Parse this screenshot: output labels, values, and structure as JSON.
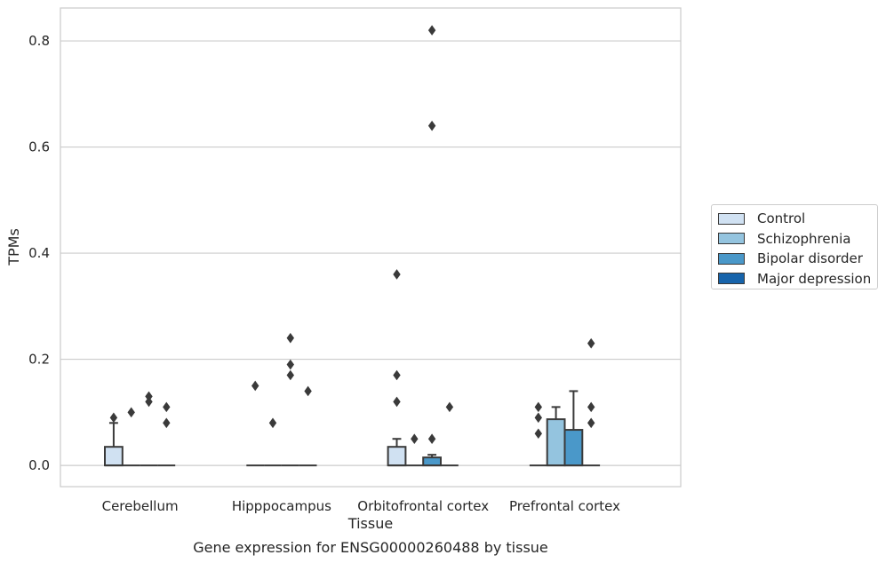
{
  "chart_data": {
    "type": "box",
    "title": "Gene expression for ENSG00000260488 by tissue",
    "xlabel": "Tissue",
    "ylabel": "TPMs",
    "ylim": [
      -0.04,
      0.862
    ],
    "yticks": [
      "0.0",
      "0.2",
      "0.4",
      "0.6",
      "0.8"
    ],
    "grid": true,
    "legend_position": "right",
    "categories": [
      "Cerebellum",
      "Hipppocampus",
      "Orbitofrontal cortex",
      "Prefrontal cortex"
    ],
    "series": [
      {
        "name": "Control",
        "color": "#d0e1f2",
        "boxes": [
          {
            "q1": 0.0,
            "median": 0.0,
            "q3": 0.035,
            "whisker_low": 0.0,
            "whisker_high": 0.08,
            "outliers": [
              0.09
            ]
          },
          {
            "q1": 0.0,
            "median": 0.0,
            "q3": 0.0,
            "whisker_low": 0.0,
            "whisker_high": 0.0,
            "outliers": [
              0.15
            ]
          },
          {
            "q1": 0.0,
            "median": 0.0,
            "q3": 0.035,
            "whisker_low": 0.0,
            "whisker_high": 0.05,
            "outliers": [
              0.36,
              0.17,
              0.12
            ]
          },
          {
            "q1": 0.0,
            "median": 0.0,
            "q3": 0.0,
            "whisker_low": 0.0,
            "whisker_high": 0.0,
            "outliers": [
              0.11,
              0.09,
              0.06
            ]
          }
        ]
      },
      {
        "name": "Schizophrenia",
        "color": "#94c4df",
        "boxes": [
          {
            "q1": 0.0,
            "median": 0.0,
            "q3": 0.0,
            "whisker_low": 0.0,
            "whisker_high": 0.0,
            "outliers": [
              0.1
            ]
          },
          {
            "q1": 0.0,
            "median": 0.0,
            "q3": 0.0,
            "whisker_low": 0.0,
            "whisker_high": 0.0,
            "outliers": [
              0.08
            ]
          },
          {
            "q1": 0.0,
            "median": 0.0,
            "q3": 0.0,
            "whisker_low": 0.0,
            "whisker_high": 0.0,
            "outliers": [
              0.05
            ]
          },
          {
            "q1": 0.0,
            "median": 0.0,
            "q3": 0.087,
            "whisker_low": 0.0,
            "whisker_high": 0.11,
            "outliers": []
          }
        ]
      },
      {
        "name": "Bipolar disorder",
        "color": "#4a98c9",
        "boxes": [
          {
            "q1": 0.0,
            "median": 0.0,
            "q3": 0.0,
            "whisker_low": 0.0,
            "whisker_high": 0.0,
            "outliers": [
              0.13,
              0.12
            ]
          },
          {
            "q1": 0.0,
            "median": 0.0,
            "q3": 0.0,
            "whisker_low": 0.0,
            "whisker_high": 0.0,
            "outliers": [
              0.24,
              0.19,
              0.17
            ]
          },
          {
            "q1": 0.0,
            "median": 0.0,
            "q3": 0.015,
            "whisker_low": 0.0,
            "whisker_high": 0.02,
            "outliers": [
              0.82,
              0.64,
              0.05
            ]
          },
          {
            "q1": 0.0,
            "median": 0.0,
            "q3": 0.067,
            "whisker_low": 0.0,
            "whisker_high": 0.14,
            "outliers": []
          }
        ]
      },
      {
        "name": "Major depression",
        "color": "#1764ab",
        "boxes": [
          {
            "q1": 0.0,
            "median": 0.0,
            "q3": 0.0,
            "whisker_low": 0.0,
            "whisker_high": 0.0,
            "outliers": [
              0.11,
              0.08
            ]
          },
          {
            "q1": 0.0,
            "median": 0.0,
            "q3": 0.0,
            "whisker_low": 0.0,
            "whisker_high": 0.0,
            "outliers": [
              0.14
            ]
          },
          {
            "q1": 0.0,
            "median": 0.0,
            "q3": 0.0,
            "whisker_low": 0.0,
            "whisker_high": 0.0,
            "outliers": [
              0.11
            ]
          },
          {
            "q1": 0.0,
            "median": 0.0,
            "q3": 0.0,
            "whisker_low": 0.0,
            "whisker_high": 0.0,
            "outliers": [
              0.23,
              0.11,
              0.08
            ]
          }
        ]
      }
    ]
  }
}
